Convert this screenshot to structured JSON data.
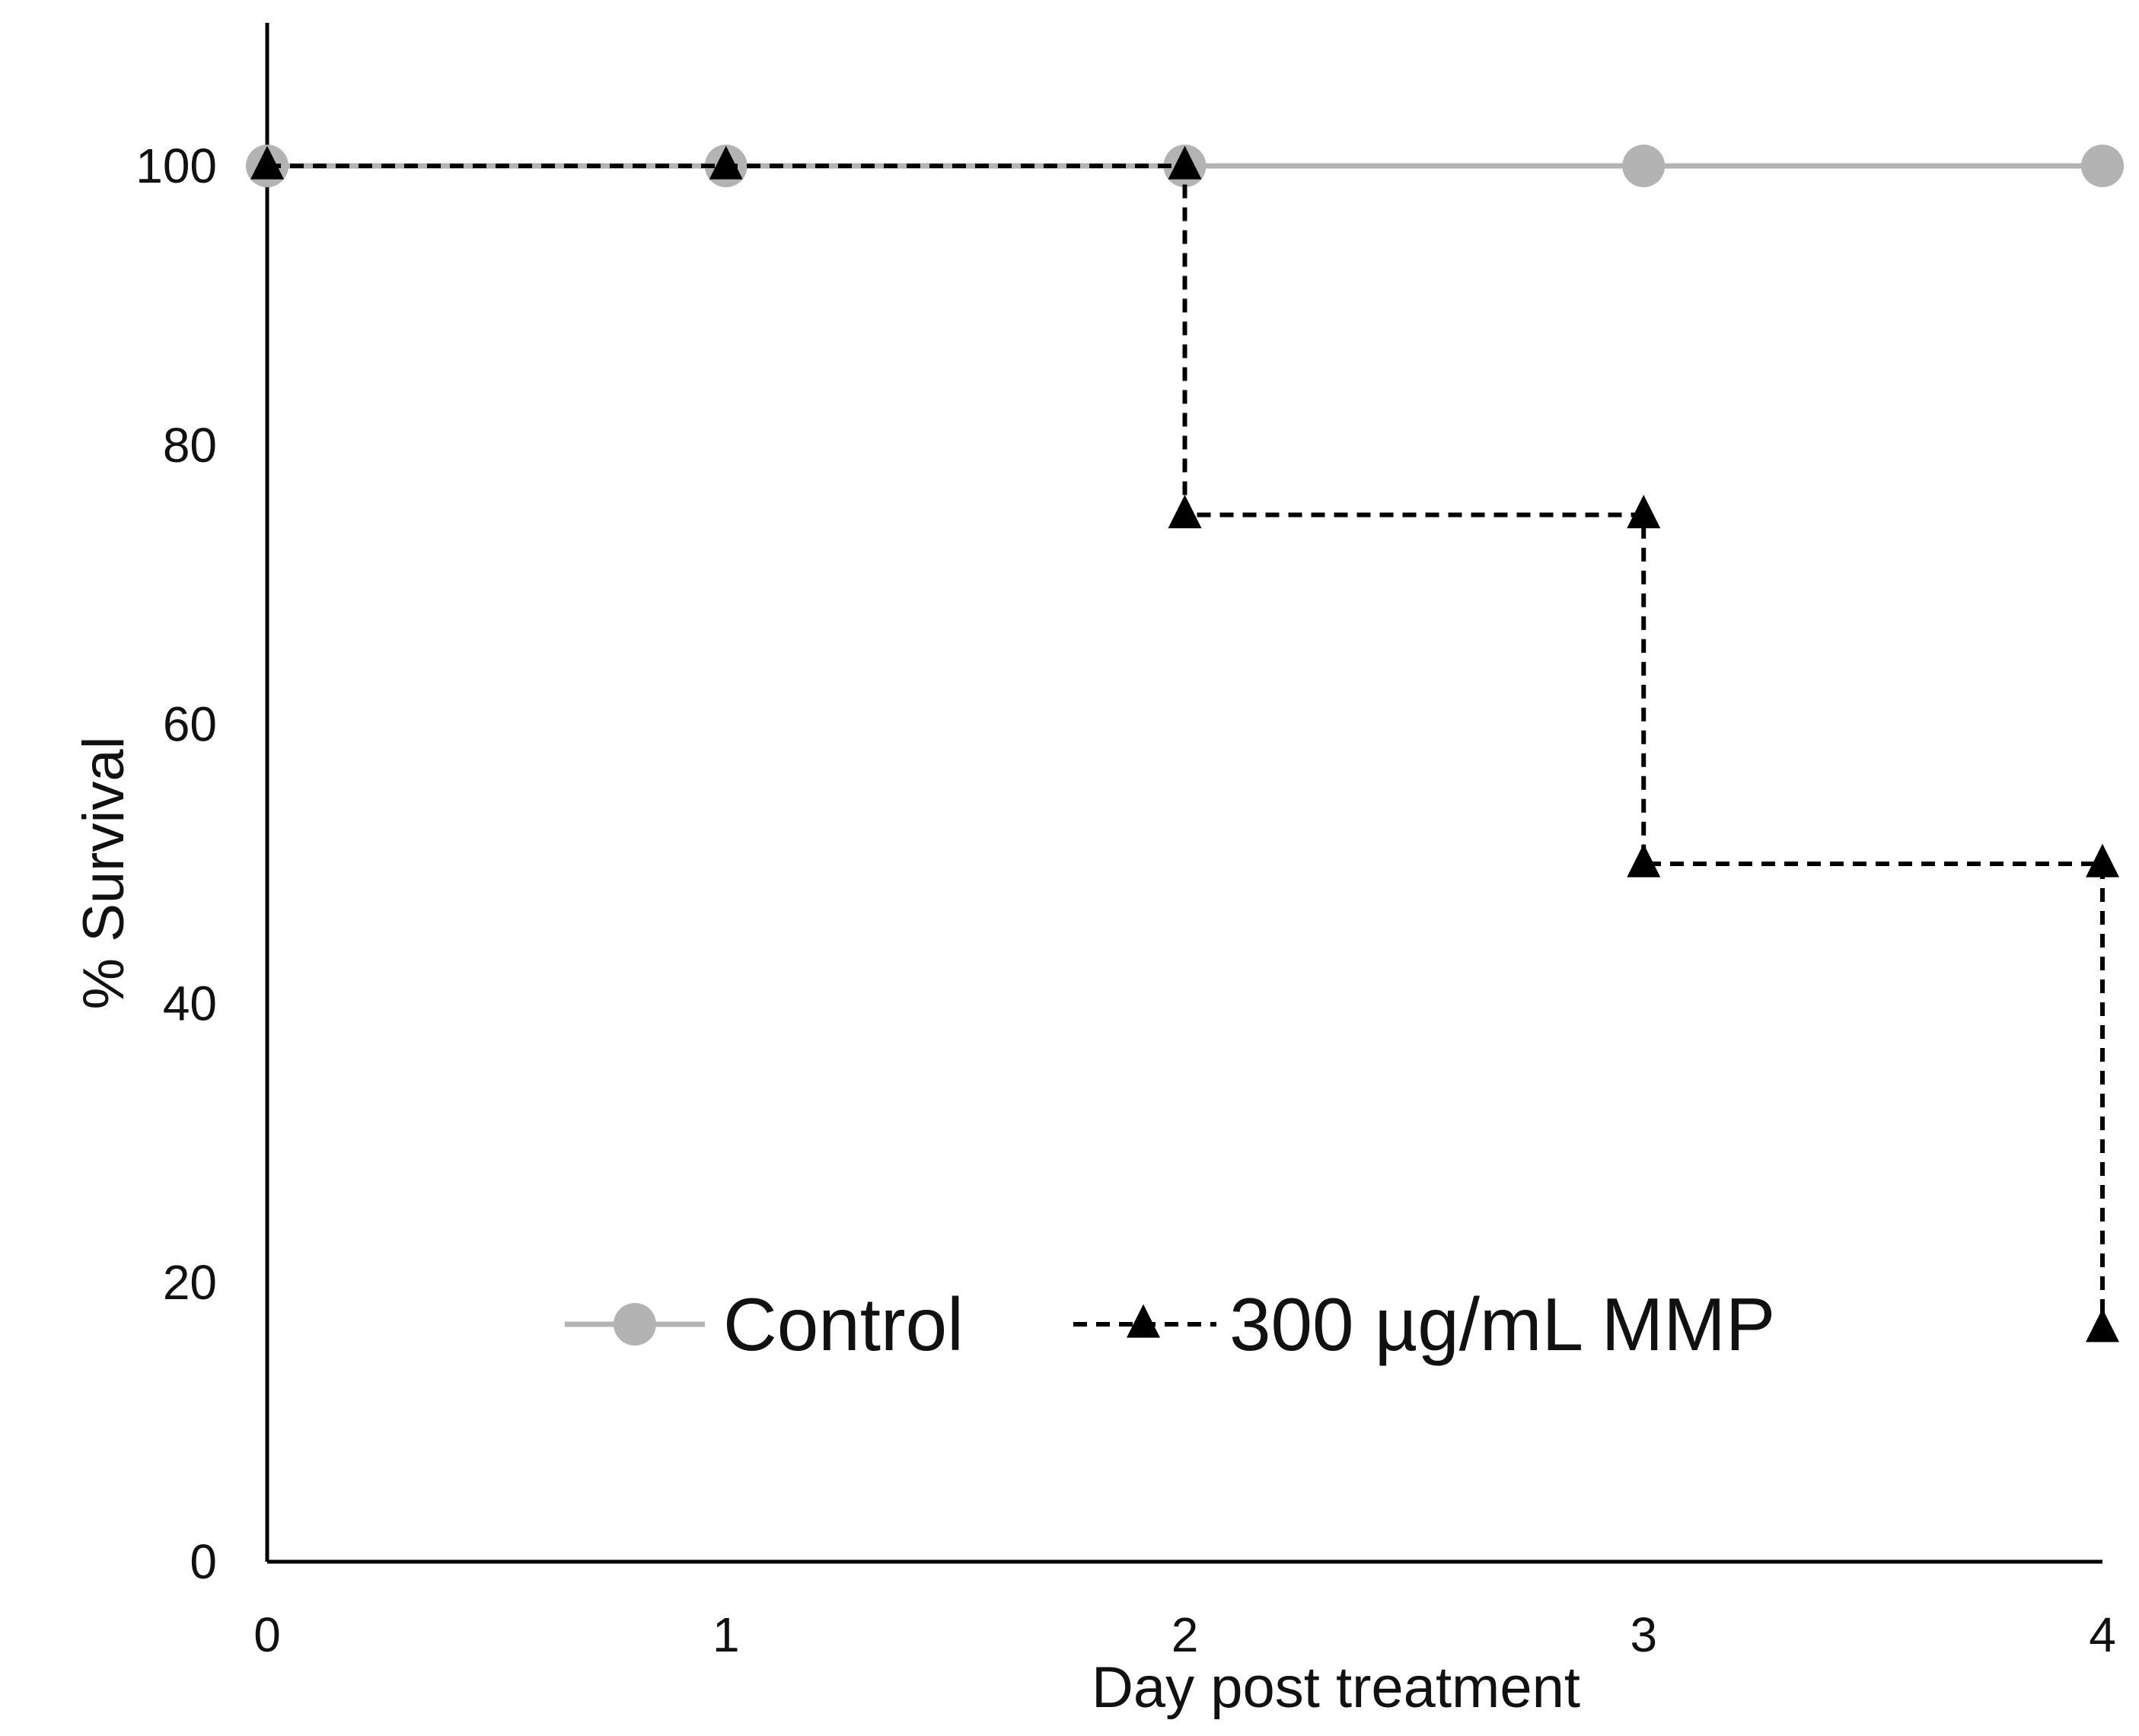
{
  "chart_data": {
    "type": "line",
    "title": "",
    "xlabel": "Day post treatment",
    "ylabel": "% Survival",
    "xlim": [
      0,
      4
    ],
    "ylim": [
      0,
      100
    ],
    "x_ticks": [
      0,
      1,
      2,
      3,
      4
    ],
    "y_ticks": [
      0,
      20,
      40,
      60,
      80,
      100
    ],
    "grid": false,
    "legend_position": "bottom-center",
    "series": [
      {
        "name": "Control",
        "color": "#b3b3b3",
        "line_style": "solid",
        "marker": "circle",
        "step": true,
        "points": [
          [
            0,
            100
          ],
          [
            1,
            100
          ],
          [
            2,
            100
          ],
          [
            3,
            100
          ],
          [
            4,
            100
          ]
        ]
      },
      {
        "name": "300 µg/mL MMP",
        "color": "#000000",
        "line_style": "dashed",
        "marker": "triangle",
        "step": true,
        "points": [
          [
            0,
            100
          ],
          [
            1,
            100
          ],
          [
            2,
            100
          ],
          [
            2,
            75
          ],
          [
            3,
            75
          ],
          [
            3,
            50
          ],
          [
            4,
            50
          ],
          [
            4,
            16.7
          ]
        ]
      }
    ]
  }
}
